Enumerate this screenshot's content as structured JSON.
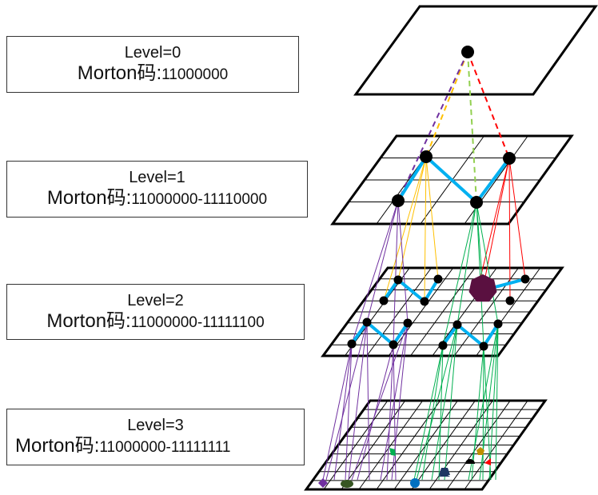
{
  "levels": [
    {
      "level_text": "Level=0",
      "morton_label": "Morton码:",
      "morton_code": "11000000"
    },
    {
      "level_text": "Level=1",
      "morton_label": "Morton码:",
      "morton_code": "11000000-11110000"
    },
    {
      "level_text": "Level=2",
      "morton_label": "Morton码:",
      "morton_code": "11000000-11111100"
    },
    {
      "level_text": "Level=3",
      "morton_label": "Morton码:",
      "morton_code": "11000000-11111111"
    }
  ],
  "colors": {
    "purple": "#7030a0",
    "yellow": "#ffc000",
    "green": "#92d050",
    "red": "#ff0000",
    "dark_green": "#00b050",
    "blue_path": "#00b0f0",
    "node": "#000000",
    "cluster": "#5a1040"
  },
  "symbols": [
    "diamond-icon",
    "ellipse-icon",
    "green-shape-icon",
    "circle-icon",
    "trapezoid-icon",
    "dome-icon",
    "pentagon-icon",
    "triangle-icon"
  ]
}
